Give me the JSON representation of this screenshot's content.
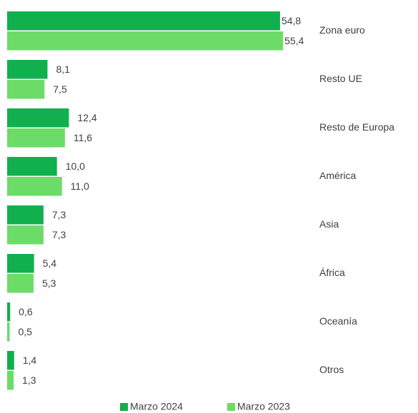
{
  "chart_data": {
    "type": "bar",
    "orientation": "horizontal",
    "categories": [
      "Zona euro",
      "Resto UE",
      "Resto de Europa",
      "América",
      "Asia",
      "África",
      "Oceanía",
      "Otros"
    ],
    "series": [
      {
        "name": "Marzo 2024",
        "color": "#10b04e",
        "values": [
          54.8,
          8.1,
          12.4,
          10.0,
          7.3,
          5.4,
          0.6,
          1.4
        ],
        "value_labels": [
          "54,8",
          "8,1",
          "12,4",
          "10,0",
          "7,3",
          "5,4",
          "0,6",
          "1,4"
        ]
      },
      {
        "name": "Marzo 2023",
        "color": "#6cdc68",
        "values": [
          55.4,
          7.5,
          11.6,
          11.0,
          7.3,
          5.3,
          0.5,
          1.3
        ],
        "value_labels": [
          "55,4",
          "7,5",
          "11,6",
          "11,0",
          "7,3",
          "5,3",
          "0,5",
          "1,3"
        ]
      }
    ],
    "legend": "bottom"
  }
}
